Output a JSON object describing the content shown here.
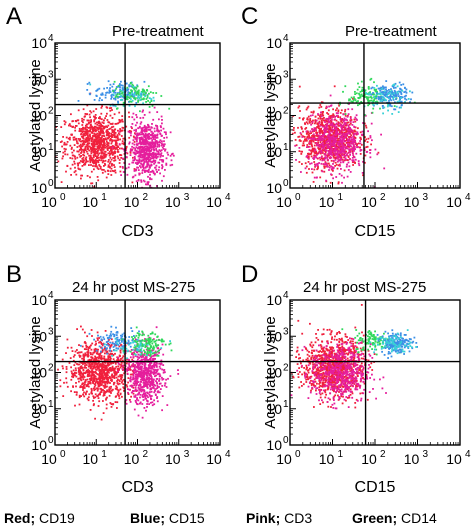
{
  "colors": {
    "red": "#f0203c",
    "pink": "#e51e9c",
    "blue": "#3b8fe6",
    "green": "#2fd85a",
    "cyan": "#38d1d6"
  },
  "legend": [
    {
      "key": "Red;",
      "label": "CD19"
    },
    {
      "key": "Blue;",
      "label": "CD15"
    },
    {
      "key": "Pink;",
      "label": "CD3"
    },
    {
      "key": "Green;",
      "label": "CD14"
    }
  ],
  "chart_data": [
    {
      "type": "scatter",
      "panel": "A",
      "title": "Pre-treatment",
      "xlabel": "CD3",
      "ylabel": "Acetylated lysine",
      "xscale": "log",
      "yscale": "log",
      "xlim": [
        1,
        10000
      ],
      "ylim": [
        1,
        10000
      ],
      "x_ticks": [
        "10",
        "10",
        "10",
        "10",
        "10"
      ],
      "x_tick_exponents": [
        "0",
        "1",
        "2",
        "3",
        "4"
      ],
      "y_ticks": [
        "10",
        "10",
        "10",
        "10",
        "10"
      ],
      "y_tick_exponents": [
        "0",
        "1",
        "2",
        "3",
        "4"
      ],
      "quadrant_gate": {
        "x": 50,
        "y": 200
      },
      "populations": [
        {
          "color": "red",
          "center": [
            10,
            18
          ],
          "spread": [
            0.38,
            0.42
          ],
          "n": 900
        },
        {
          "color": "pink",
          "center": [
            160,
            12
          ],
          "spread": [
            0.22,
            0.4
          ],
          "n": 650
        },
        {
          "color": "blue",
          "center": [
            35,
            450
          ],
          "spread": [
            0.3,
            0.15
          ],
          "n": 140
        },
        {
          "color": "green",
          "center": [
            90,
            400
          ],
          "spread": [
            0.28,
            0.18
          ],
          "n": 110
        },
        {
          "color": "cyan",
          "center": [
            70,
            350
          ],
          "spread": [
            0.3,
            0.16
          ],
          "n": 40
        }
      ]
    },
    {
      "type": "scatter",
      "panel": "C",
      "title": "Pre-treatment",
      "xlabel": "CD15",
      "ylabel": "Acetylate lysine",
      "xscale": "log",
      "yscale": "log",
      "xlim": [
        1,
        10000
      ],
      "ylim": [
        1,
        10000
      ],
      "x_ticks": [
        "10",
        "10",
        "10",
        "10",
        "10"
      ],
      "x_tick_exponents": [
        "0",
        "1",
        "2",
        "3",
        "4"
      ],
      "y_ticks": [
        "10",
        "10",
        "10",
        "10",
        "10"
      ],
      "y_tick_exponents": [
        "0",
        "1",
        "2",
        "3",
        "4"
      ],
      "quadrant_gate": {
        "x": 55,
        "y": 220
      },
      "populations": [
        {
          "color": "red",
          "center": [
            8,
            25
          ],
          "spread": [
            0.35,
            0.4
          ],
          "n": 900
        },
        {
          "color": "pink",
          "center": [
            12,
            18
          ],
          "spread": [
            0.35,
            0.4
          ],
          "n": 550
        },
        {
          "color": "green",
          "center": [
            70,
            350
          ],
          "spread": [
            0.25,
            0.18
          ],
          "n": 130
        },
        {
          "color": "blue",
          "center": [
            220,
            380
          ],
          "spread": [
            0.2,
            0.16
          ],
          "n": 150
        },
        {
          "color": "cyan",
          "center": [
            180,
            300
          ],
          "spread": [
            0.25,
            0.18
          ],
          "n": 60
        }
      ]
    },
    {
      "type": "scatter",
      "panel": "B",
      "title": "24 hr post MS-275",
      "xlabel": "CD3",
      "ylabel": "Acetylated lysine",
      "xscale": "log",
      "yscale": "log",
      "xlim": [
        1,
        10000
      ],
      "ylim": [
        1,
        10000
      ],
      "x_ticks": [
        "10",
        "10",
        "10",
        "10",
        "10"
      ],
      "x_tick_exponents": [
        "0",
        "1",
        "2",
        "3",
        "4"
      ],
      "y_ticks": [
        "10",
        "10",
        "10",
        "10",
        "10"
      ],
      "y_tick_exponents": [
        "0",
        "1",
        "2",
        "3",
        "4"
      ],
      "quadrant_gate": {
        "x": 50,
        "y": 200
      },
      "populations": [
        {
          "color": "red",
          "center": [
            12,
            120
          ],
          "spread": [
            0.38,
            0.4
          ],
          "n": 950
        },
        {
          "color": "pink",
          "center": [
            150,
            90
          ],
          "spread": [
            0.22,
            0.4
          ],
          "n": 650
        },
        {
          "color": "blue",
          "center": [
            30,
            800
          ],
          "spread": [
            0.28,
            0.15
          ],
          "n": 110
        },
        {
          "color": "green",
          "center": [
            160,
            700
          ],
          "spread": [
            0.22,
            0.18
          ],
          "n": 130
        },
        {
          "color": "cyan",
          "center": [
            60,
            500
          ],
          "spread": [
            0.3,
            0.16
          ],
          "n": 40
        }
      ]
    },
    {
      "type": "scatter",
      "panel": "D",
      "title": "24 hr post MS-275",
      "xlabel": "CD15",
      "ylabel": "Acetylated lysine",
      "xscale": "log",
      "yscale": "log",
      "xlim": [
        1,
        10000
      ],
      "ylim": [
        1,
        10000
      ],
      "x_ticks": [
        "10",
        "10",
        "10",
        "10",
        "10"
      ],
      "x_tick_exponents": [
        "0",
        "1",
        "2",
        "3",
        "4"
      ],
      "y_ticks": [
        "10",
        "10",
        "10",
        "10",
        "10"
      ],
      "y_tick_exponents": [
        "0",
        "1",
        "2",
        "3",
        "4"
      ],
      "quadrant_gate": {
        "x": 60,
        "y": 200
      },
      "populations": [
        {
          "color": "red",
          "center": [
            10,
            150
          ],
          "spread": [
            0.35,
            0.4
          ],
          "n": 950
        },
        {
          "color": "pink",
          "center": [
            15,
            100
          ],
          "spread": [
            0.35,
            0.4
          ],
          "n": 500
        },
        {
          "color": "green",
          "center": [
            90,
            800
          ],
          "spread": [
            0.22,
            0.15
          ],
          "n": 110
        },
        {
          "color": "blue",
          "center": [
            300,
            700
          ],
          "spread": [
            0.18,
            0.14
          ],
          "n": 170
        },
        {
          "color": "cyan",
          "center": [
            250,
            650
          ],
          "spread": [
            0.22,
            0.14
          ],
          "n": 70
        }
      ]
    }
  ]
}
